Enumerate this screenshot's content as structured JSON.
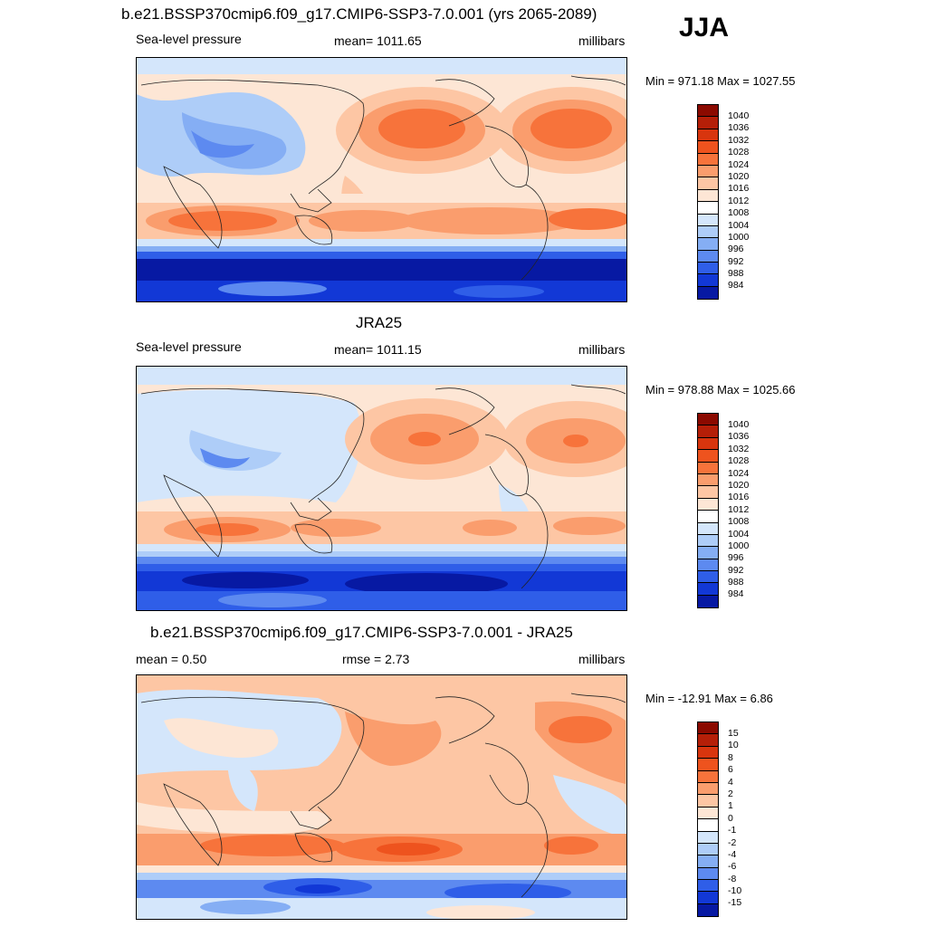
{
  "season": "JJA",
  "panels": [
    {
      "title": "b.e21.BSSP370cmip6.f09_g17.CMIP6-SSP3-7.0.001 (yrs 2065-2089)",
      "left_label": "Sea-level pressure",
      "center_label": "mean= 1011.65",
      "right_label": "millibars",
      "minmax": "Min = 971.18 Max = 1027.55"
    },
    {
      "title": "JRA25",
      "left_label": "Sea-level pressure",
      "center_label": "mean= 1011.15",
      "right_label": "millibars",
      "minmax": "Min = 978.88 Max = 1025.66"
    },
    {
      "title": "b.e21.BSSP370cmip6.f09_g17.CMIP6-SSP3-7.0.001 - JRA25",
      "left_label": "mean =   0.50",
      "center_label": "rmse =   2.73",
      "right_label": "millibars",
      "minmax": "Min = -12.91 Max =   6.86"
    }
  ],
  "colorbar_slp": {
    "ticks": [
      "1040",
      "1036",
      "1032",
      "1028",
      "1024",
      "1020",
      "1016",
      "1012",
      "1008",
      "1004",
      "1000",
      "996",
      "992",
      "988",
      "984"
    ],
    "colors": [
      "#8b0a00",
      "#b51f08",
      "#d8350e",
      "#ee531e",
      "#f7733b",
      "#fa9d6d",
      "#fdc6a4",
      "#fde6d5",
      "#ffffff",
      "#d4e6fb",
      "#aecdf8",
      "#85aef4",
      "#5d8af0",
      "#2f5ee8",
      "#1238d6",
      "#0719a3"
    ]
  },
  "colorbar_diff": {
    "ticks": [
      "15",
      "10",
      "8",
      "6",
      "4",
      "2",
      "1",
      "0",
      "-1",
      "-2",
      "-4",
      "-6",
      "-8",
      "-10",
      "-15"
    ],
    "colors": [
      "#8b0a00",
      "#b51f08",
      "#d8350e",
      "#ee531e",
      "#f7733b",
      "#fa9d6d",
      "#fdc6a4",
      "#fde6d5",
      "#ffffff",
      "#d4e6fb",
      "#aecdf8",
      "#85aef4",
      "#5d8af0",
      "#2f5ee8",
      "#1238d6",
      "#0719a3"
    ]
  }
}
